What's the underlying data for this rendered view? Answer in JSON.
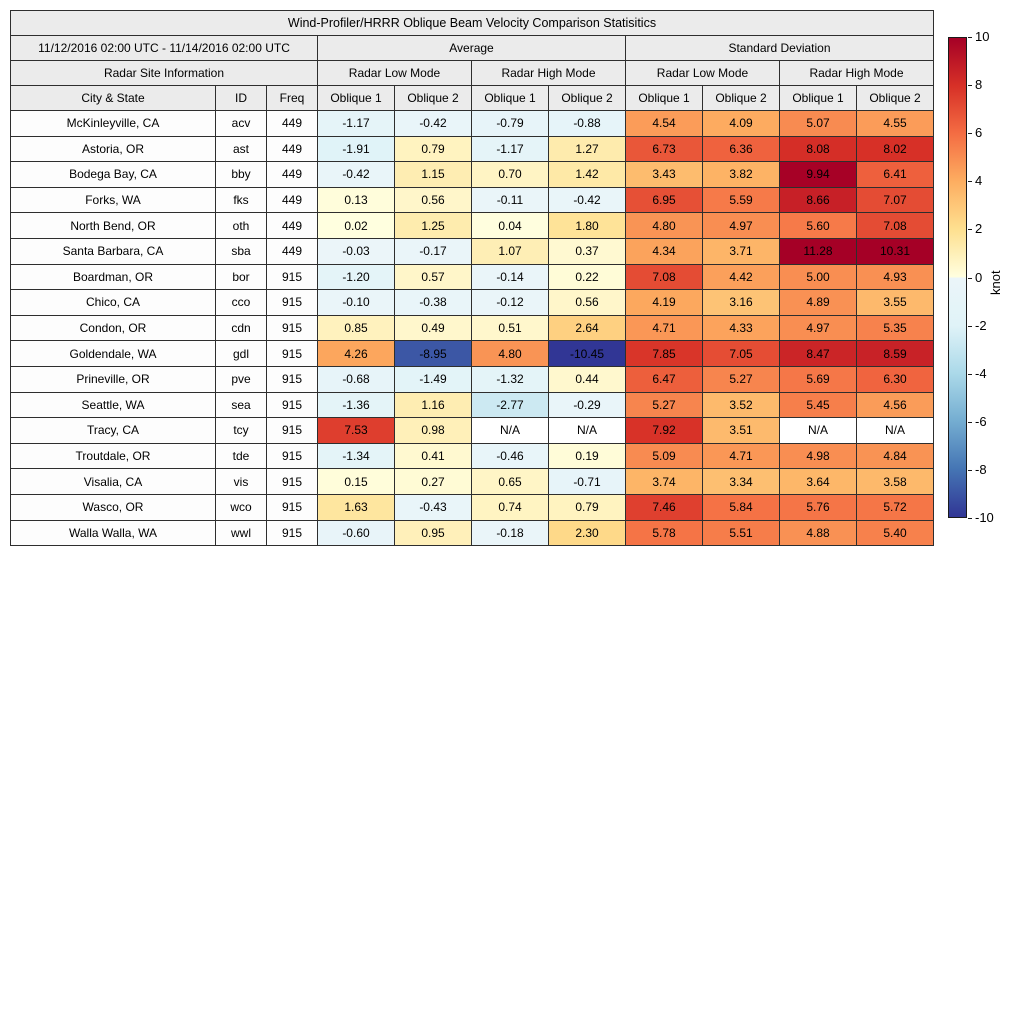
{
  "chart_data": {
    "type": "heatmap",
    "title": "Wind-Profiler/HRRR Oblique Beam Velocity Comparison Statisitics",
    "date_range": "11/12/2016 02:00 UTC - 11/14/2016 02:00 UTC",
    "group_headers": [
      "Average",
      "Standard Deviation"
    ],
    "section_headers": [
      "Radar Site Information",
      "Radar Low Mode",
      "Radar High Mode",
      "Radar Low Mode",
      "Radar High Mode"
    ],
    "column_headers": [
      "City & State",
      "ID",
      "Freq",
      "Oblique 1",
      "Oblique 2",
      "Oblique 1",
      "Oblique 2",
      "Oblique 1",
      "Oblique 2",
      "Oblique 1",
      "Oblique 2"
    ],
    "colormap": {
      "name": "RdYlBu_r diverging",
      "vmin": -10,
      "vmax": 10,
      "positive_stops": [
        [
          0,
          "#ffffe0"
        ],
        [
          2,
          "#fee090"
        ],
        [
          4,
          "#fdae61"
        ],
        [
          6,
          "#f46d43"
        ],
        [
          8,
          "#d73027"
        ],
        [
          10,
          "#a50026"
        ]
      ],
      "negative_stops": [
        [
          0,
          "#ebf5f9"
        ],
        [
          2,
          "#e0f3f8"
        ],
        [
          4,
          "#abd9e9"
        ],
        [
          6,
          "#74add1"
        ],
        [
          8,
          "#4575b4"
        ],
        [
          10,
          "#313695"
        ]
      ],
      "na_color": "#ffffff"
    },
    "colorbar": {
      "label": "knot",
      "ticks": [
        "10",
        "8",
        "6",
        "4",
        "2",
        "0",
        "-2",
        "-4",
        "-6",
        "-8",
        "-10"
      ]
    },
    "rows": [
      {
        "city": "McKinleyville, CA",
        "id": "acv",
        "freq": "449",
        "values": [
          "-1.17",
          "-0.42",
          "-0.79",
          "-0.88",
          "4.54",
          "4.09",
          "5.07",
          "4.55"
        ]
      },
      {
        "city": "Astoria, OR",
        "id": "ast",
        "freq": "449",
        "values": [
          "-1.91",
          "0.79",
          "-1.17",
          "1.27",
          "6.73",
          "6.36",
          "8.08",
          "8.02"
        ]
      },
      {
        "city": "Bodega Bay, CA",
        "id": "bby",
        "freq": "449",
        "values": [
          "-0.42",
          "1.15",
          "0.70",
          "1.42",
          "3.43",
          "3.82",
          "9.94",
          "6.41"
        ]
      },
      {
        "city": "Forks, WA",
        "id": "fks",
        "freq": "449",
        "values": [
          "0.13",
          "0.56",
          "-0.11",
          "-0.42",
          "6.95",
          "5.59",
          "8.66",
          "7.07"
        ]
      },
      {
        "city": "North Bend, OR",
        "id": "oth",
        "freq": "449",
        "values": [
          "0.02",
          "1.25",
          "0.04",
          "1.80",
          "4.80",
          "4.97",
          "5.60",
          "7.08"
        ]
      },
      {
        "city": "Santa Barbara, CA",
        "id": "sba",
        "freq": "449",
        "values": [
          "-0.03",
          "-0.17",
          "1.07",
          "0.37",
          "4.34",
          "3.71",
          "11.28",
          "10.31"
        ]
      },
      {
        "city": "Boardman, OR",
        "id": "bor",
        "freq": "915",
        "values": [
          "-1.20",
          "0.57",
          "-0.14",
          "0.22",
          "7.08",
          "4.42",
          "5.00",
          "4.93"
        ]
      },
      {
        "city": "Chico, CA",
        "id": "cco",
        "freq": "915",
        "values": [
          "-0.10",
          "-0.38",
          "-0.12",
          "0.56",
          "4.19",
          "3.16",
          "4.89",
          "3.55"
        ]
      },
      {
        "city": "Condon, OR",
        "id": "cdn",
        "freq": "915",
        "values": [
          "0.85",
          "0.49",
          "0.51",
          "2.64",
          "4.71",
          "4.33",
          "4.97",
          "5.35"
        ]
      },
      {
        "city": "Goldendale, WA",
        "id": "gdl",
        "freq": "915",
        "values": [
          "4.26",
          "-8.95",
          "4.80",
          "-10.45",
          "7.85",
          "7.05",
          "8.47",
          "8.59"
        ]
      },
      {
        "city": "Prineville, OR",
        "id": "pve",
        "freq": "915",
        "values": [
          "-0.68",
          "-1.49",
          "-1.32",
          "0.44",
          "6.47",
          "5.27",
          "5.69",
          "6.30"
        ]
      },
      {
        "city": "Seattle, WA",
        "id": "sea",
        "freq": "915",
        "values": [
          "-1.36",
          "1.16",
          "-2.77",
          "-0.29",
          "5.27",
          "3.52",
          "5.45",
          "4.56"
        ]
      },
      {
        "city": "Tracy, CA",
        "id": "tcy",
        "freq": "915",
        "values": [
          "7.53",
          "0.98",
          "N/A",
          "N/A",
          "7.92",
          "3.51",
          "N/A",
          "N/A"
        ]
      },
      {
        "city": "Troutdale, OR",
        "id": "tde",
        "freq": "915",
        "values": [
          "-1.34",
          "0.41",
          "-0.46",
          "0.19",
          "5.09",
          "4.71",
          "4.98",
          "4.84"
        ]
      },
      {
        "city": "Visalia, CA",
        "id": "vis",
        "freq": "915",
        "values": [
          "0.15",
          "0.27",
          "0.65",
          "-0.71",
          "3.74",
          "3.34",
          "3.64",
          "3.58"
        ]
      },
      {
        "city": "Wasco, OR",
        "id": "wco",
        "freq": "915",
        "values": [
          "1.63",
          "-0.43",
          "0.74",
          "0.79",
          "7.46",
          "5.84",
          "5.76",
          "5.72"
        ]
      },
      {
        "city": "Walla Walla, WA",
        "id": "wwl",
        "freq": "915",
        "values": [
          "-0.60",
          "0.95",
          "-0.18",
          "2.30",
          "5.78",
          "5.51",
          "4.88",
          "5.40"
        ]
      }
    ]
  }
}
